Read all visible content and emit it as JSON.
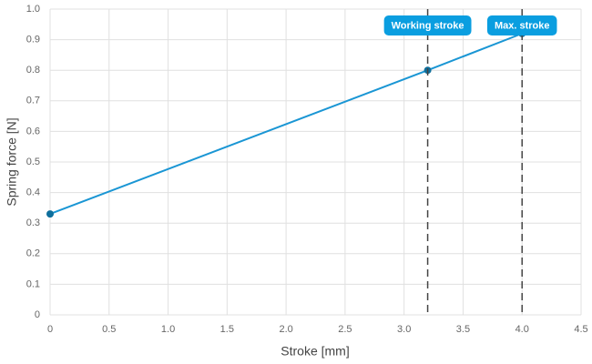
{
  "chart_data": {
    "type": "line",
    "x_label": "Stroke [mm]",
    "y_label": "Spring force [N]",
    "x": [
      0,
      3.2,
      4.0
    ],
    "values": [
      0.33,
      0.8,
      0.92
    ],
    "color": "#1a96d4",
    "marker_color": "#0f6f9c",
    "xlim": [
      0,
      4.5
    ],
    "xticks": [
      0,
      0.5,
      {
        "value": 1,
        "label": "1.0"
      },
      1.5,
      {
        "value": 2,
        "label": "2.0"
      },
      2.5,
      {
        "value": 3,
        "label": "3.0"
      },
      3.5,
      {
        "value": 4,
        "label": "4.0"
      },
      4.5
    ],
    "ylim": [
      0,
      1
    ],
    "yticks": [
      0,
      0.1,
      0.2,
      0.3,
      0.4,
      0.5,
      0.6,
      0.7,
      0.8,
      0.9,
      {
        "value": 1,
        "label": "1.0"
      }
    ],
    "grid": true,
    "annotations": [
      {
        "x": 3.2,
        "label": "Working stroke"
      },
      {
        "x": 4,
        "label": "Max. stroke"
      }
    ],
    "annotation_color": "#0a9ee0"
  }
}
